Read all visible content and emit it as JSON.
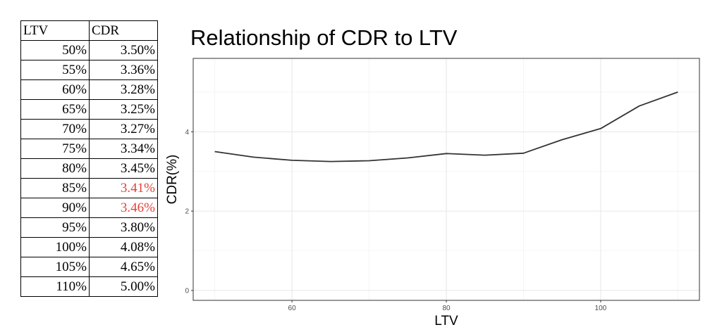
{
  "table": {
    "headers": [
      "LTV",
      "CDR"
    ],
    "rows": [
      {
        "ltv": "50%",
        "cdr": "3.50%",
        "highlight": false
      },
      {
        "ltv": "55%",
        "cdr": "3.36%",
        "highlight": false
      },
      {
        "ltv": "60%",
        "cdr": "3.28%",
        "highlight": false
      },
      {
        "ltv": "65%",
        "cdr": "3.25%",
        "highlight": false
      },
      {
        "ltv": "70%",
        "cdr": "3.27%",
        "highlight": false
      },
      {
        "ltv": "75%",
        "cdr": "3.34%",
        "highlight": false
      },
      {
        "ltv": "80%",
        "cdr": "3.45%",
        "highlight": false
      },
      {
        "ltv": "85%",
        "cdr": "3.41%",
        "highlight": true
      },
      {
        "ltv": "90%",
        "cdr": "3.46%",
        "highlight": true
      },
      {
        "ltv": "95%",
        "cdr": "3.80%",
        "highlight": false
      },
      {
        "ltv": "100%",
        "cdr": "4.08%",
        "highlight": false
      },
      {
        "ltv": "105%",
        "cdr": "4.65%",
        "highlight": false
      },
      {
        "ltv": "110%",
        "cdr": "5.00%",
        "highlight": false
      }
    ],
    "highlight_color": "#e8413a"
  },
  "chart_data": {
    "type": "line",
    "title": "Relationship of CDR to LTV",
    "xlabel": "LTV",
    "ylabel": "CDR(%)",
    "x": [
      50,
      55,
      60,
      65,
      70,
      75,
      80,
      85,
      90,
      95,
      100,
      105,
      110
    ],
    "series": [
      {
        "values": [
          3.5,
          3.36,
          3.28,
          3.25,
          3.27,
          3.34,
          3.45,
          3.41,
          3.46,
          3.8,
          4.08,
          4.65,
          5.0
        ]
      }
    ],
    "xlim": [
      47.2,
      112.8
    ],
    "ylim": [
      -0.25,
      5.85
    ],
    "xticks": [
      60,
      80,
      100
    ],
    "yticks": [
      0,
      2,
      4
    ],
    "xminor": [
      50,
      70,
      90,
      110
    ],
    "yminor": [
      1,
      3,
      5
    ],
    "grid": true,
    "line_color": "#333333"
  }
}
